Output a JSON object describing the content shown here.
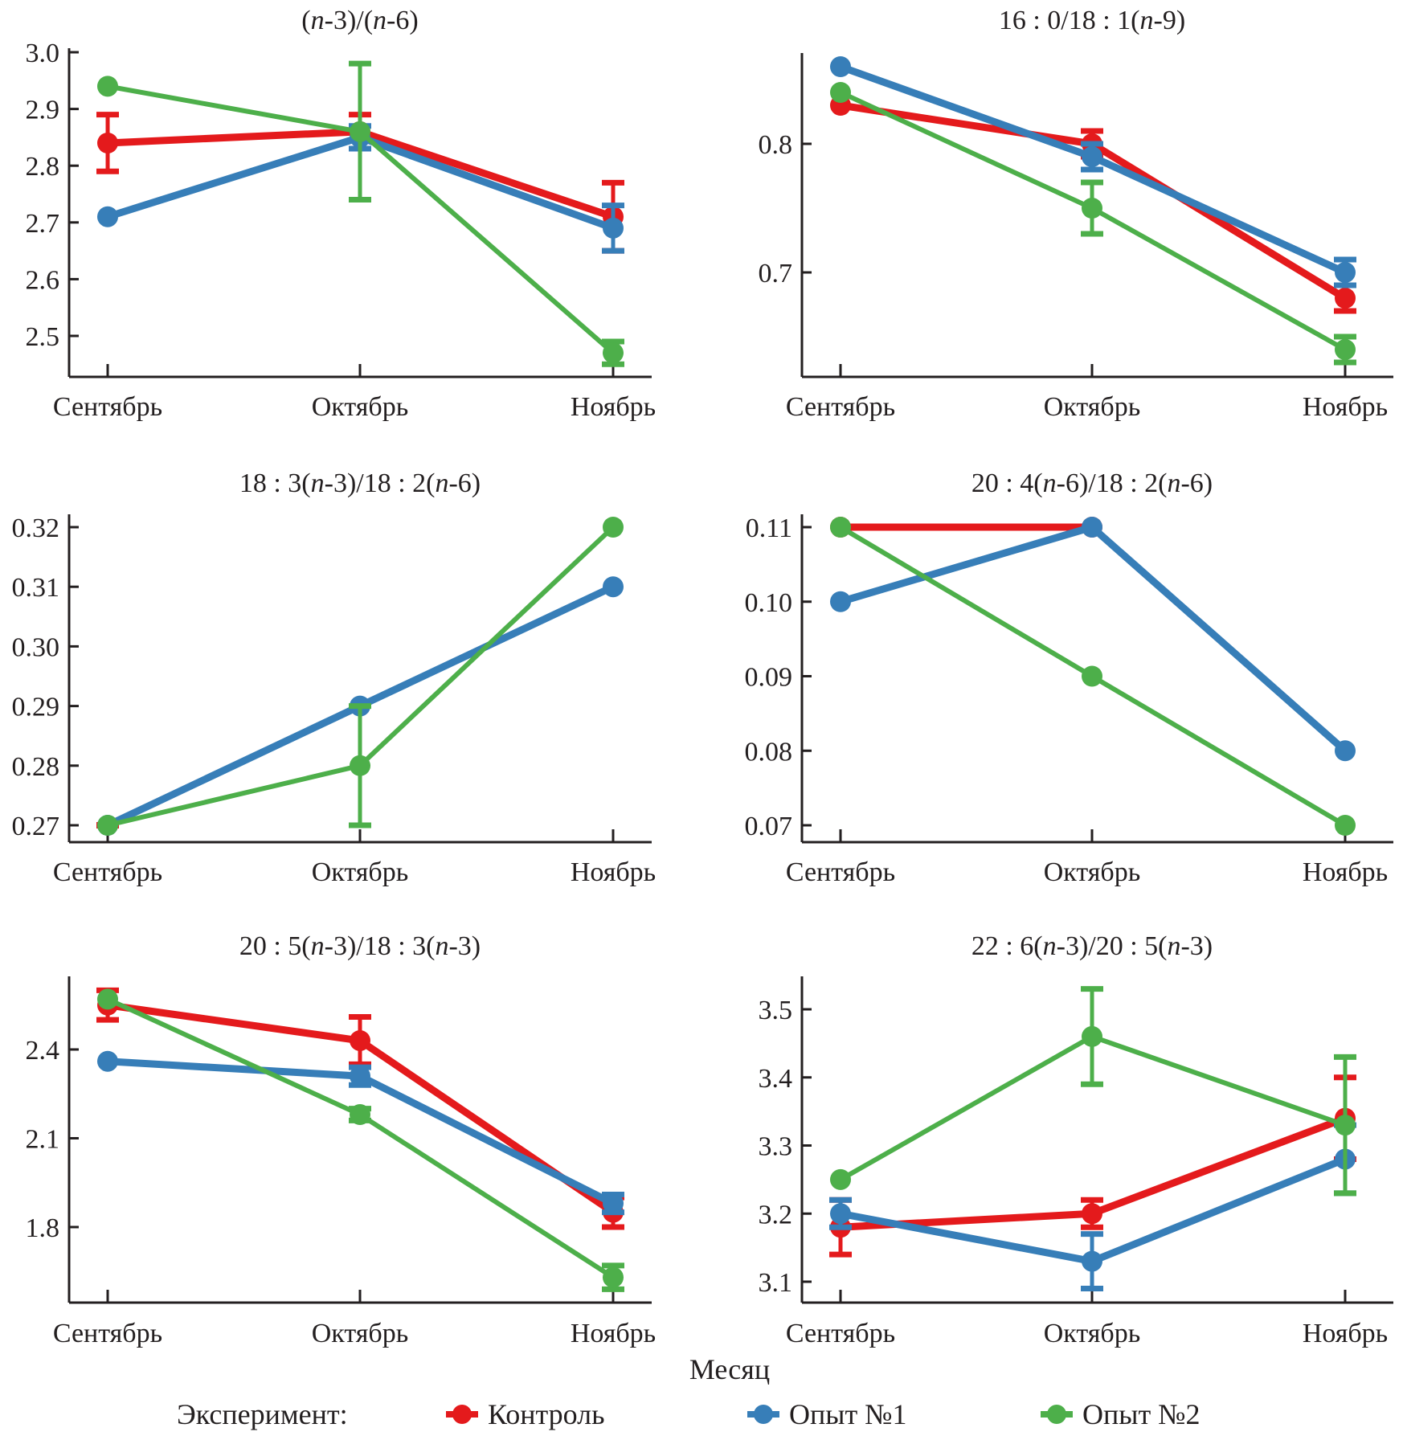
{
  "chart_data": {
    "type": "line",
    "xlabel": "Месяц",
    "categories": [
      "Сентябрь",
      "Октябрь",
      "Ноябрь"
    ],
    "legend": {
      "title": "Эксперимент:",
      "placement": "bottom",
      "entries": [
        {
          "name": "Контроль",
          "color": "#e41a1c"
        },
        {
          "name": "Опыт №1",
          "color": "#377eb8"
        },
        {
          "name": "Опыт №2",
          "color": "#4daf4a"
        }
      ]
    },
    "panels": [
      {
        "title": "(n-3)/(n-6)",
        "title_parts": [
          {
            "t": "("
          },
          {
            "t": "n",
            "i": true
          },
          {
            "t": "-3)/("
          },
          {
            "t": "n",
            "i": true
          },
          {
            "t": "-6)"
          }
        ],
        "ylim": [
          2.43,
          3.0
        ],
        "yticks": [
          "2.5",
          "2.6",
          "2.7",
          "2.8",
          "2.9",
          "3.0"
        ],
        "ytick_values": [
          2.5,
          2.6,
          2.7,
          2.8,
          2.9,
          3.0
        ],
        "series": [
          {
            "name": "Контроль",
            "values": [
              2.84,
              2.86,
              2.71
            ],
            "err": [
              0.05,
              0.03,
              0.06
            ]
          },
          {
            "name": "Опыт №1",
            "values": [
              2.71,
              2.85,
              2.69
            ],
            "err": [
              0,
              0.02,
              0.04
            ]
          },
          {
            "name": "Опыт №2",
            "values": [
              2.94,
              2.86,
              2.47
            ],
            "err": [
              0,
              0.12,
              0.02
            ]
          }
        ]
      },
      {
        "title": "16 : 0/18 : 1(n-9)",
        "title_parts": [
          {
            "t": "16 : 0/18 : 1("
          },
          {
            "t": "n",
            "i": true
          },
          {
            "t": "-9)"
          }
        ],
        "ylim": [
          0.62,
          0.87
        ],
        "yticks": [
          "0.7",
          "0.8"
        ],
        "ytick_values": [
          0.7,
          0.8
        ],
        "series": [
          {
            "name": "Контроль",
            "values": [
              0.83,
              0.8,
              0.68
            ],
            "err": [
              0,
              0.01,
              0.01
            ]
          },
          {
            "name": "Опыт №1",
            "values": [
              0.86,
              0.79,
              0.7
            ],
            "err": [
              0,
              0.01,
              0.01
            ]
          },
          {
            "name": "Опыт №2",
            "values": [
              0.84,
              0.75,
              0.64
            ],
            "err": [
              0,
              0.02,
              0.01
            ]
          }
        ]
      },
      {
        "title": "18 : 3(n-3)/18 : 2(n-6)",
        "title_parts": [
          {
            "t": "18 : 3("
          },
          {
            "t": "n",
            "i": true
          },
          {
            "t": "-3)/18 : 2("
          },
          {
            "t": "n",
            "i": true
          },
          {
            "t": "-6)"
          }
        ],
        "ylim": [
          0.2675,
          0.3222
        ],
        "yticks": [
          "0.27",
          "0.28",
          "0.29",
          "0.30",
          "0.31",
          "0.32"
        ],
        "ytick_values": [
          0.27,
          0.28,
          0.29,
          0.3,
          0.31,
          0.32
        ],
        "series": [
          {
            "name": "Контроль",
            "values": [
              0.27,
              null,
              null
            ],
            "err": [
              0,
              0,
              0
            ]
          },
          {
            "name": "Опыт №1",
            "values": [
              0.27,
              0.29,
              0.31
            ],
            "err": [
              0,
              0,
              0
            ]
          },
          {
            "name": "Опыт №2",
            "values": [
              0.27,
              0.28,
              0.32
            ],
            "err": [
              0,
              0.01,
              0
            ]
          }
        ]
      },
      {
        "title": "20 : 4(n-6)/18 : 2(n-6)",
        "title_parts": [
          {
            "t": "20 : 4("
          },
          {
            "t": "n",
            "i": true
          },
          {
            "t": "-6)/18 : 2("
          },
          {
            "t": "n",
            "i": true
          },
          {
            "t": "-6)"
          }
        ],
        "ylim": [
          0.0675,
          0.1122
        ],
        "yticks": [
          "0.07",
          "0.08",
          "0.09",
          "0.10",
          "0.11"
        ],
        "ytick_values": [
          0.07,
          0.08,
          0.09,
          0.1,
          0.11
        ],
        "series": [
          {
            "name": "Контроль",
            "values": [
              0.11,
              0.11,
              null
            ],
            "err": [
              0,
              0,
              0
            ]
          },
          {
            "name": "Опыт №1",
            "values": [
              0.1,
              0.11,
              0.08
            ],
            "err": [
              0,
              0,
              0
            ]
          },
          {
            "name": "Опыт №2",
            "values": [
              0.11,
              0.09,
              0.07
            ],
            "err": [
              0,
              0,
              0
            ]
          }
        ]
      },
      {
        "title": "20 : 5(n-3)/18 : 3(n-3)",
        "title_parts": [
          {
            "t": "20 : 5("
          },
          {
            "t": "n",
            "i": true
          },
          {
            "t": "-3)/18 : 3("
          },
          {
            "t": "n",
            "i": true
          },
          {
            "t": "-3)"
          }
        ],
        "ylim": [
          1.55,
          2.62
        ],
        "yticks": [
          "1.8",
          "2.1",
          "2.4"
        ],
        "ytick_values": [
          1.8,
          2.1,
          2.4
        ],
        "series": [
          {
            "name": "Контроль",
            "values": [
              2.55,
              2.43,
              1.85
            ],
            "err": [
              0.05,
              0.08,
              0.05
            ]
          },
          {
            "name": "Опыт №1",
            "values": [
              2.36,
              2.31,
              1.88
            ],
            "err": [
              0,
              0.03,
              0.03
            ]
          },
          {
            "name": "Опыт №2",
            "values": [
              2.57,
              2.18,
              1.63
            ],
            "err": [
              0,
              0.02,
              0.04
            ]
          }
        ]
      },
      {
        "title": "22 : 6(n-3)/20 : 5(n-3)",
        "title_parts": [
          {
            "t": "22 : 6("
          },
          {
            "t": "n",
            "i": true
          },
          {
            "t": "-3)/20 : 5("
          },
          {
            "t": "n",
            "i": true
          },
          {
            "t": "-3)"
          }
        ],
        "ylim": [
          3.07,
          3.55
        ],
        "yticks": [
          "3.1",
          "3.2",
          "3.3",
          "3.4",
          "3.5"
        ],
        "ytick_values": [
          3.1,
          3.2,
          3.3,
          3.4,
          3.5
        ],
        "series": [
          {
            "name": "Контроль",
            "values": [
              3.18,
              3.2,
              3.34
            ],
            "err": [
              0.04,
              0.02,
              0.06
            ]
          },
          {
            "name": "Опыт №1",
            "values": [
              3.2,
              3.13,
              3.28
            ],
            "err": [
              0.02,
              0.04,
              0.05
            ]
          },
          {
            "name": "Опыт №2",
            "values": [
              3.25,
              3.46,
              3.33
            ],
            "err": [
              0,
              0.07,
              0.1
            ]
          }
        ]
      }
    ]
  }
}
